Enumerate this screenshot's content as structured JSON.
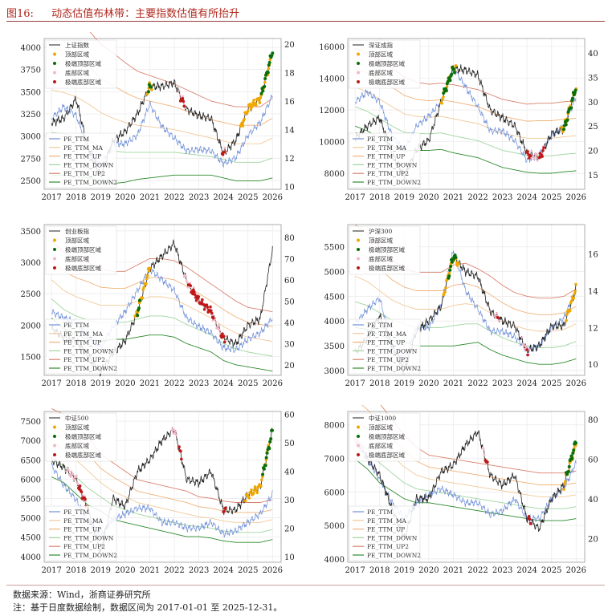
{
  "figure": {
    "label": "图16:",
    "title": "动态估值布林带：主要指数估值有所抬升"
  },
  "footer": {
    "source": "数据来源：Wind，浙商证券研究所",
    "note": "注：基于日度数据绘制，数据区间为 2017-01-01 至 2025-12-31。"
  },
  "colors": {
    "index": "#222222",
    "pe": "#6f8fd8",
    "ma": "#f2c99a",
    "up": "#f0b27a",
    "down": "#9fd49f",
    "up2": "#d9826f",
    "down2": "#2e8b2e",
    "top": "#f0a800",
    "extreme_top": "#0a6e0a",
    "bottom": "#f4b8c8",
    "extreme_bottom": "#c01818"
  },
  "chart_data": [
    {
      "type": "line",
      "index_name": "上证指数",
      "legend_top": [
        "上证指数",
        "顶部区域",
        "极端顶部区域",
        "底部区域",
        "极端底部区域"
      ],
      "legend_bottom": [
        "PE_TTM",
        "PE_TTM_MA",
        "PE_TTM_UP",
        "PE_TTM_DOWN",
        "PE_TTM_UP2",
        "PE_TTM_DOWN2"
      ],
      "x": [
        2017,
        2017.5,
        2018,
        2018.5,
        2019,
        2019.5,
        2020,
        2020.5,
        2021,
        2021.5,
        2022,
        2022.5,
        2023,
        2023.5,
        2024,
        2024.5,
        2025,
        2025.5,
        2026
      ],
      "x_ticks": [
        "2017",
        "2018",
        "2019",
        "2020",
        "2021",
        "2022",
        "2023",
        "2024",
        "2025",
        "2026"
      ],
      "ylim_left": [
        2400,
        4100
      ],
      "left_ticks": [
        "2500",
        "2750",
        "3000",
        "3250",
        "3500",
        "3750",
        "4000"
      ],
      "ylim_right": [
        9.8,
        20.4
      ],
      "right_ticks": [
        "10",
        "12",
        "14",
        "16",
        "18",
        "20"
      ],
      "index": [
        3150,
        3200,
        3420,
        2850,
        2550,
        2950,
        3050,
        3250,
        3560,
        3560,
        3600,
        3300,
        3230,
        3200,
        2800,
        2950,
        3300,
        3420,
        3950
      ],
      "pe_ttm": [
        14.8,
        15.6,
        15.0,
        12.6,
        11.4,
        13.0,
        13.0,
        13.6,
        15.8,
        14.2,
        13.4,
        12.5,
        12.6,
        12.5,
        11.6,
        12.0,
        13.6,
        14.5,
        16.4
      ],
      "pe_ma": [
        16.8,
        16.6,
        16.3,
        15.8,
        15.2,
        14.8,
        14.5,
        14.3,
        14.2,
        14.1,
        14.0,
        13.8,
        13.6,
        13.4,
        13.2,
        13.0,
        13.0,
        13.0,
        13.4
      ],
      "pe_std": [
        3.0,
        2.9,
        2.8,
        2.6,
        2.4,
        2.3,
        2.1,
        1.9,
        1.8,
        1.7,
        1.6,
        1.5,
        1.4,
        1.3,
        1.3,
        1.3,
        1.3,
        1.3,
        1.4
      ],
      "zones": {
        "top": [
          [
            2020.9,
            2021.1
          ],
          [
            2024.7,
            2025.9
          ]
        ],
        "extreme_top": [
          [
            2020.95,
            2021.05
          ],
          [
            2025.55,
            2026
          ]
        ],
        "bottom": [
          [
            2022.2,
            2022.45
          ],
          [
            2024.0,
            2024.1
          ]
        ],
        "extreme_bottom": [
          [
            2022.25,
            2022.4
          ],
          [
            2023.95,
            2024.05
          ]
        ]
      }
    },
    {
      "type": "line",
      "index_name": "深证成指",
      "legend_top": [
        "深证成指",
        "顶部区域",
        "极端顶部区域",
        "底部区域",
        "极端底部区域"
      ],
      "legend_bottom": [
        "PE_TTM",
        "PE_TTM_MA",
        "PE_TTM_UP",
        "PE_TTM_DOWN",
        "PE_TTM_UP2",
        "PE_TTM_DOWN2"
      ],
      "x": [
        2017,
        2017.5,
        2018,
        2018.5,
        2019,
        2019.5,
        2020,
        2020.5,
        2021,
        2021.5,
        2022,
        2022.5,
        2023,
        2023.5,
        2024,
        2024.5,
        2025,
        2025.5,
        2026
      ],
      "x_ticks": [
        "2017",
        "2018",
        "2019",
        "2020",
        "2021",
        "2022",
        "2023",
        "2024",
        "2025",
        "2026"
      ],
      "ylim_left": [
        7000,
        16500
      ],
      "left_ticks": [
        "8000",
        "10000",
        "12000",
        "14000",
        "16000"
      ],
      "ylim_right": [
        12,
        43
      ],
      "right_ticks": [
        "15",
        "20",
        "25",
        "30",
        "35",
        "40"
      ],
      "index": [
        10200,
        11000,
        11500,
        9300,
        7800,
        9500,
        10100,
        12500,
        14600,
        14500,
        14200,
        12000,
        11500,
        11000,
        9300,
        9000,
        10500,
        10800,
        13500
      ],
      "pe_ttm": [
        30,
        32,
        30,
        23,
        20,
        25,
        27,
        30,
        37,
        33,
        29,
        24,
        24,
        22,
        18,
        19,
        23,
        25,
        31
      ],
      "pe_ma": [
        33,
        32,
        30.5,
        29,
        27.5,
        27,
        26.8,
        27,
        26.5,
        26,
        25.5,
        24.5,
        23.5,
        23,
        22.5,
        22.5,
        22.5,
        22.8,
        23
      ],
      "pe_std": [
        4,
        4,
        4,
        4,
        3.8,
        3.5,
        3.4,
        3.4,
        3.5,
        3.5,
        3.5,
        3.5,
        3.5,
        3.5,
        3.5,
        3.6,
        3.6,
        3.6,
        3.6
      ],
      "zones": {
        "top": [
          [
            2020.5,
            2021.1
          ],
          [
            2025.4,
            2026
          ]
        ],
        "extreme_top": [
          [
            2020.6,
            2021.05
          ],
          [
            2025.5,
            2026
          ]
        ],
        "bottom": [
          [
            2024.0,
            2024.7
          ]
        ],
        "extreme_bottom": [
          [
            2024.0,
            2024.15
          ],
          [
            2024.5,
            2024.7
          ]
        ]
      }
    },
    {
      "type": "line",
      "index_name": "创业板指",
      "legend_top": [
        "创业板指",
        "顶部区域",
        "极端顶部区域",
        "底部区域",
        "极端底部区域"
      ],
      "legend_bottom": [
        "PE_TTM",
        "PE_TTM_MA",
        "PE_TTM_UP",
        "PE_TTM_DOWN",
        "PE_TTM_UP2",
        "PE_TTM_DOWN2"
      ],
      "x": [
        2017,
        2017.5,
        2018,
        2018.5,
        2019,
        2019.5,
        2020,
        2020.5,
        2021,
        2021.5,
        2022,
        2022.5,
        2023,
        2023.5,
        2024,
        2024.5,
        2025,
        2025.5,
        2026
      ],
      "x_ticks": [
        "2017",
        "2018",
        "2019",
        "2020",
        "2021",
        "2022",
        "2023",
        "2024",
        "2025",
        "2026"
      ],
      "ylim_left": [
        1200,
        3600
      ],
      "left_ticks": [
        "1500",
        "2000",
        "2500",
        "3000",
        "3500"
      ],
      "ylim_right": [
        15,
        86
      ],
      "right_ticks": [
        "20",
        "30",
        "40",
        "50",
        "60",
        "70",
        "80"
      ],
      "index": [
        1950,
        1800,
        1750,
        1500,
        1250,
        1550,
        1750,
        2200,
        2900,
        3100,
        3300,
        2700,
        2400,
        2200,
        1800,
        1700,
        2000,
        2100,
        3200
      ],
      "pe_ttm": [
        45,
        42,
        40,
        33,
        28,
        38,
        45,
        55,
        65,
        60,
        55,
        42,
        38,
        35,
        28,
        27,
        32,
        35,
        42
      ],
      "pe_ma": [
        60,
        55,
        52,
        50,
        48,
        48,
        48,
        50,
        52,
        52,
        51,
        48,
        45,
        42,
        38,
        35,
        33,
        32,
        31
      ],
      "pe_std": [
        9,
        9,
        9,
        9,
        8.5,
        8,
        8,
        8.5,
        9,
        9,
        9,
        9,
        8.5,
        8,
        8,
        7.5,
        7,
        7,
        7
      ],
      "zones": {
        "top": [
          [
            2020.4,
            2021.0
          ]
        ],
        "extreme_top": [
          [
            2020.5,
            2020.6
          ]
        ],
        "bottom": [
          [
            2022.4,
            2024.1
          ]
        ],
        "extreme_bottom": [
          [
            2022.6,
            2023.6
          ],
          [
            2023.9,
            2024.05
          ]
        ]
      }
    },
    {
      "type": "line",
      "index_name": "沪深300",
      "legend_top": [
        "沪深300",
        "顶部区域",
        "极端顶部区域",
        "底部区域",
        "极端底部区域"
      ],
      "legend_bottom": [
        "PE_TTM",
        "PE_TTM_MA",
        "PE_TTM_UP",
        "PE_TTM_DOWN",
        "PE_TTM_UP2",
        "PE_TTM_DOWN2"
      ],
      "x": [
        2017,
        2017.5,
        2018,
        2018.5,
        2019,
        2019.5,
        2020,
        2020.5,
        2021,
        2021.5,
        2022,
        2022.5,
        2023,
        2023.5,
        2024,
        2024.5,
        2025,
        2025.5,
        2026
      ],
      "x_ticks": [
        "2017",
        "2018",
        "2019",
        "2020",
        "2021",
        "2022",
        "2023",
        "2024",
        "2025",
        "2026"
      ],
      "ylim_left": [
        2900,
        5950
      ],
      "left_ticks": [
        "3000",
        "3500",
        "4000",
        "4500",
        "5000",
        "5500"
      ],
      "ylim_right": [
        9.4,
        17.6
      ],
      "right_ticks": [
        "10",
        "12",
        "14",
        "16"
      ],
      "index": [
        3350,
        3650,
        4100,
        3500,
        3000,
        3800,
        4000,
        4300,
        5300,
        5000,
        4900,
        4200,
        4000,
        3900,
        3400,
        3500,
        3900,
        3900,
        4650
      ],
      "pe_ttm": [
        12.2,
        13,
        13.6,
        11,
        10.2,
        12,
        12,
        13.2,
        16.2,
        14,
        13,
        11.8,
        11.8,
        11.5,
        10.8,
        11,
        12,
        12.5,
        14
      ],
      "pe_ma": [
        14.8,
        14.5,
        14,
        13.5,
        13.2,
        13,
        13,
        13,
        13.2,
        13.3,
        13.2,
        12.8,
        12.4,
        12.1,
        11.9,
        11.8,
        11.8,
        11.9,
        12.2
      ],
      "pe_std": [
        1.4,
        1.3,
        1.2,
        1.1,
        1.0,
        1.0,
        1.0,
        1.0,
        1.1,
        1.1,
        1.0,
        1.0,
        0.95,
        0.9,
        0.9,
        0.9,
        0.9,
        0.9,
        0.95
      ],
      "zones": {
        "top": [
          [
            2020.6,
            2021.2
          ],
          [
            2025.6,
            2026
          ]
        ],
        "extreme_top": [
          [
            2020.8,
            2021.1
          ]
        ],
        "bottom": [
          [
            2022.7,
            2022.85
          ],
          [
            2023.8,
            2024.1
          ]
        ],
        "extreme_bottom": [
          [
            2022.8,
            2022.85
          ],
          [
            2024.0,
            2024.05
          ]
        ]
      }
    },
    {
      "type": "line",
      "index_name": "中证500",
      "legend_top": [
        "中证500",
        "顶部区域",
        "极端顶部区域",
        "底部区域",
        "极端底部区域"
      ],
      "legend_bottom": [
        "PE_TTM",
        "PE_TTM_MA",
        "PE_TTM_UP",
        "PE_TTM_DOWN",
        "PE_TTM_UP2",
        "PE_TTM_DOWN2"
      ],
      "x": [
        2017,
        2017.5,
        2018,
        2018.5,
        2019,
        2019.5,
        2020,
        2020.5,
        2021,
        2021.5,
        2022,
        2022.5,
        2023,
        2023.5,
        2024,
        2024.5,
        2025,
        2025.5,
        2026
      ],
      "x_ticks": [
        "2017",
        "2018",
        "2019",
        "2020",
        "2021",
        "2022",
        "2023",
        "2024",
        "2025",
        "2026"
      ],
      "ylim_left": [
        3850,
        7750
      ],
      "left_ticks": [
        "4000",
        "4500",
        "5000",
        "5500",
        "6000",
        "6500",
        "7000",
        "7500"
      ],
      "ylim_right": [
        8,
        61
      ],
      "right_ticks": [
        "10",
        "20",
        "30",
        "40",
        "50",
        "60"
      ],
      "index": [
        6500,
        6300,
        6000,
        5200,
        4100,
        5500,
        5300,
        6200,
        6500,
        7000,
        7300,
        6000,
        5900,
        6200,
        5200,
        5200,
        5600,
        5800,
        7300
      ],
      "pe_ttm": [
        42,
        35,
        30,
        22,
        17,
        23,
        25,
        27,
        27,
        22,
        22,
        20,
        20,
        22,
        18,
        19,
        22,
        25,
        32
      ],
      "pe_ma": [
        50,
        48,
        44,
        40,
        36,
        33,
        31,
        29,
        28,
        27,
        26,
        25,
        24,
        23.5,
        22.5,
        22,
        22,
        22,
        23
      ],
      "pe_std": [
        6,
        6,
        6,
        6,
        5,
        5,
        4.5,
        4,
        4,
        4,
        4,
        4,
        3.5,
        3.5,
        3.5,
        3.5,
        3.5,
        3.5,
        3.5
      ],
      "zones": {
        "top": [
          [
            2024.9,
            2025.9
          ]
        ],
        "extreme_top": [
          [
            2025.6,
            2026
          ]
        ],
        "bottom": [
          [
            2017.6,
            2018.4
          ],
          [
            2021.9,
            2022.1
          ]
        ],
        "extreme_bottom": [
          [
            2018.1,
            2018.4
          ],
          [
            2022.2,
            2022.3
          ],
          [
            2024.0,
            2024.1
          ]
        ]
      }
    },
    {
      "type": "line",
      "index_name": "中证1000",
      "legend_top": [
        "中证1000",
        "顶部区域",
        "极端顶部区域",
        "底部区域",
        "极端底部区域"
      ],
      "legend_bottom": [
        "PE_TTM",
        "PE_TTM_MA",
        "PE_TTM_UP",
        "PE_TTM_DOWN",
        "PE_TTM_UP2",
        "PE_TTM_DOWN2"
      ],
      "x": [
        2017,
        2017.5,
        2018,
        2018.5,
        2019,
        2019.5,
        2020,
        2020.5,
        2021,
        2021.5,
        2022,
        2022.5,
        2023,
        2023.5,
        2024,
        2024.5,
        2025,
        2025.5,
        2026
      ],
      "x_ticks": [
        "2017",
        "2018",
        "2019",
        "2020",
        "2021",
        "2022",
        "2023",
        "2024",
        "2025",
        "2026"
      ],
      "ylim_left": [
        3900,
        8400
      ],
      "left_ticks": [
        "4000",
        "5000",
        "6000",
        "7000",
        "8000"
      ],
      "ylim_right": [
        8,
        84
      ],
      "right_ticks": [
        "20",
        "40",
        "60",
        "80"
      ],
      "index": [
        7600,
        7000,
        6500,
        5500,
        4600,
        5800,
        5800,
        6600,
        6800,
        7400,
        7800,
        6500,
        6200,
        6500,
        5200,
        4900,
        5800,
        6200,
        7500
      ],
      "pe_ttm": [
        70,
        60,
        50,
        38,
        30,
        38,
        42,
        45,
        42,
        38,
        38,
        32,
        34,
        40,
        30,
        30,
        40,
        45,
        58
      ],
      "pe_ma": [
        80,
        75,
        68,
        62,
        56,
        52,
        50,
        49,
        48,
        47,
        46,
        45,
        44,
        43,
        42,
        41,
        41,
        41,
        42
      ],
      "pe_std": [
        10,
        10,
        10,
        9,
        8,
        7,
        6,
        6,
        6,
        6,
        6,
        6,
        6,
        6,
        6,
        6,
        6,
        6,
        6
      ],
      "zones": {
        "top": [
          [
            2025.5,
            2026
          ]
        ],
        "extreme_top": [
          [
            2025.6,
            2026
          ]
        ],
        "bottom": [
          [
            2017.0,
            2017.4
          ],
          [
            2022.2,
            2022.4
          ]
        ],
        "extreme_bottom": [
          [
            2022.3,
            2022.4
          ],
          [
            2024.05,
            2024.15
          ]
        ]
      }
    }
  ]
}
